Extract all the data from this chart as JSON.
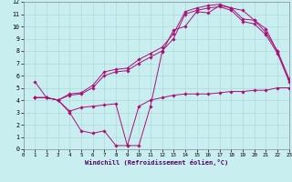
{
  "xlabel": "Windchill (Refroidissement éolien,°C)",
  "xlim": [
    0,
    23
  ],
  "ylim": [
    0,
    12
  ],
  "xticks": [
    0,
    1,
    2,
    3,
    4,
    5,
    6,
    7,
    8,
    9,
    10,
    11,
    12,
    13,
    14,
    15,
    16,
    17,
    18,
    19,
    20,
    21,
    22,
    23
  ],
  "yticks": [
    0,
    1,
    2,
    3,
    4,
    5,
    6,
    7,
    8,
    9,
    10,
    11,
    12
  ],
  "bg_color": "#c8eef0",
  "grid_color": "#b0d8da",
  "line_color": "#aa1177",
  "line1_x": [
    1,
    2,
    3,
    4,
    5,
    6,
    7,
    8,
    9,
    10,
    11,
    12,
    13,
    14,
    15,
    16,
    17,
    18,
    19,
    20,
    21,
    22,
    23
  ],
  "line1_y": [
    5.5,
    4.2,
    4.0,
    3.0,
    1.5,
    1.3,
    1.5,
    0.3,
    0.3,
    0.3,
    3.5,
    7.9,
    9.7,
    10.0,
    11.2,
    11.1,
    11.7,
    11.5,
    11.3,
    10.5,
    9.8,
    7.9,
    5.7
  ],
  "line2_x": [
    1,
    2,
    3,
    4,
    5,
    6,
    7,
    8,
    9,
    10,
    11,
    12,
    13,
    14,
    15,
    16,
    17,
    18,
    19,
    20,
    21,
    22,
    23
  ],
  "line2_y": [
    4.2,
    4.2,
    4.0,
    4.5,
    4.6,
    5.2,
    6.3,
    6.5,
    6.6,
    7.3,
    7.8,
    8.3,
    9.4,
    11.2,
    11.5,
    11.7,
    11.8,
    11.5,
    10.6,
    10.5,
    9.5,
    8.0,
    5.7
  ],
  "line3_x": [
    1,
    2,
    3,
    4,
    5,
    6,
    7,
    8,
    9,
    10,
    11,
    12,
    13,
    14,
    15,
    16,
    17,
    18,
    19,
    20,
    21,
    22,
    23
  ],
  "line3_y": [
    4.2,
    4.2,
    4.0,
    4.4,
    4.5,
    5.0,
    6.0,
    6.3,
    6.4,
    7.0,
    7.5,
    8.0,
    9.0,
    11.0,
    11.3,
    11.5,
    11.6,
    11.3,
    10.4,
    10.2,
    9.3,
    7.8,
    5.5
  ],
  "line4_x": [
    1,
    2,
    3,
    4,
    5,
    6,
    7,
    8,
    9,
    10,
    11,
    12,
    13,
    14,
    15,
    16,
    17,
    18,
    19,
    20,
    21,
    22,
    23
  ],
  "line4_y": [
    4.2,
    4.2,
    4.0,
    3.1,
    3.4,
    3.5,
    3.6,
    3.7,
    0.3,
    3.5,
    4.0,
    4.2,
    4.4,
    4.5,
    4.5,
    4.5,
    4.6,
    4.7,
    4.7,
    4.8,
    4.8,
    5.0,
    5.0
  ]
}
